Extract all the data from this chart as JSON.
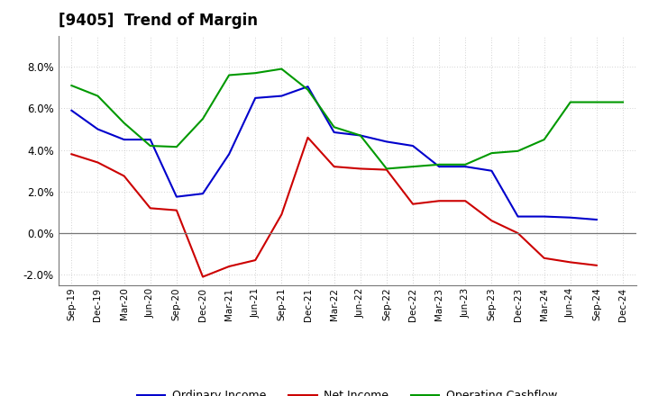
{
  "title": "[9405]  Trend of Margin",
  "x_labels": [
    "Sep-19",
    "Dec-19",
    "Mar-20",
    "Jun-20",
    "Sep-20",
    "Dec-20",
    "Mar-21",
    "Jun-21",
    "Sep-21",
    "Dec-21",
    "Mar-22",
    "Jun-22",
    "Sep-22",
    "Dec-22",
    "Mar-23",
    "Jun-23",
    "Sep-23",
    "Dec-23",
    "Mar-24",
    "Jun-24",
    "Sep-24",
    "Dec-24"
  ],
  "ordinary_income": [
    5.9,
    5.0,
    4.5,
    4.5,
    1.75,
    1.9,
    3.8,
    6.5,
    6.6,
    7.05,
    4.85,
    4.7,
    4.4,
    4.2,
    3.2,
    3.2,
    3.0,
    0.8,
    0.8,
    0.75,
    0.65,
    null
  ],
  "net_income": [
    3.8,
    3.4,
    2.75,
    1.2,
    1.1,
    -2.1,
    -1.6,
    -1.3,
    0.9,
    4.6,
    3.2,
    3.1,
    3.05,
    1.4,
    1.55,
    1.55,
    0.6,
    0.0,
    -1.2,
    -1.4,
    -1.55,
    null
  ],
  "operating_cashflow": [
    7.1,
    6.6,
    5.3,
    4.2,
    4.15,
    5.5,
    7.6,
    7.7,
    7.9,
    6.9,
    5.1,
    4.7,
    3.1,
    3.2,
    3.3,
    3.3,
    3.85,
    3.95,
    4.5,
    6.3,
    6.3,
    6.3
  ],
  "colors": {
    "ordinary_income": "#0000cc",
    "net_income": "#cc0000",
    "operating_cashflow": "#009900"
  },
  "ylim": [
    -2.5,
    9.5
  ],
  "yticks": [
    -2.0,
    0.0,
    2.0,
    4.0,
    6.0,
    8.0
  ],
  "background_color": "#ffffff",
  "grid_color": "#aaaaaa",
  "legend_labels": [
    "Ordinary Income",
    "Net Income",
    "Operating Cashflow"
  ]
}
